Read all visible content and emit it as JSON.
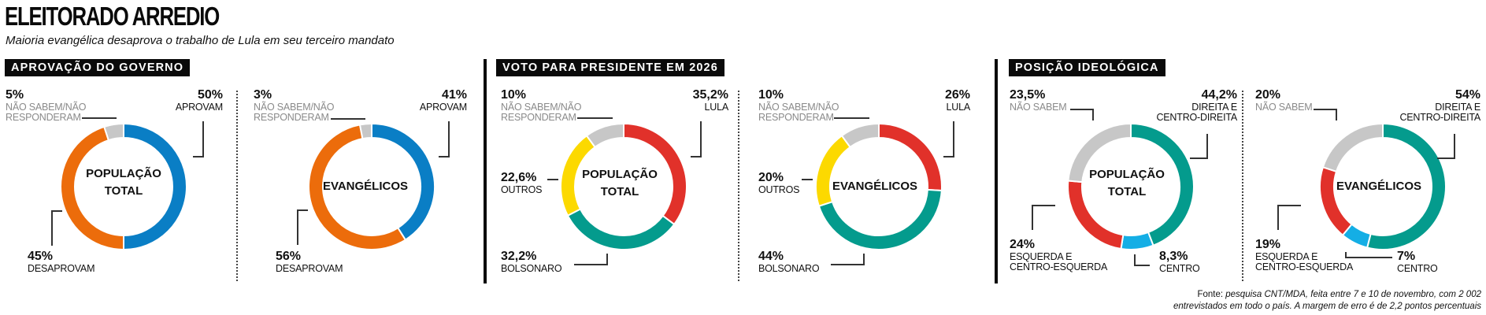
{
  "header": {
    "title": "ELEITORADO ARREDIO",
    "subtitle": "Maioria evangélica desaprova o trabalho de Lula em seu terceiro mandato"
  },
  "sections": [
    {
      "tag": "APROVAÇÃO DO GOVERNO"
    },
    {
      "tag": "VOTO PARA PRESIDENTE EM 2026"
    },
    {
      "tag": "POSIÇÃO IDEOLÓGICA"
    }
  ],
  "colors": {
    "aprovam": "#0a7ec5",
    "desaprovam": "#ec6c0b",
    "nao_sabem": "#c7c7c7",
    "lula": "#e1312a",
    "bolsonaro": "#049b8d",
    "outros": "#fcd900",
    "direita": "#049b8d",
    "centro": "#14aee5",
    "esquerda": "#e1312a"
  },
  "chart_data": [
    {
      "type": "pie",
      "section": "APROVAÇÃO DO GOVERNO",
      "center_label": [
        "POPULAÇÃO",
        "TOTAL"
      ],
      "slices": [
        {
          "key": "aprovam",
          "label": "APROVAM",
          "value": 50,
          "display": "50%"
        },
        {
          "key": "desaprovam",
          "label": "DESAPROVAM",
          "value": 45,
          "display": "45%"
        },
        {
          "key": "nao_sabem",
          "label": "NÃO SABEM/NÃO RESPONDERAM",
          "label_lines": [
            "NÃO SABEM/NÃO",
            "RESPONDERAM"
          ],
          "value": 5,
          "display": "5%"
        }
      ]
    },
    {
      "type": "pie",
      "section": "APROVAÇÃO DO GOVERNO",
      "center_label": [
        "EVANGÉLICOS"
      ],
      "slices": [
        {
          "key": "aprovam",
          "label": "APROVAM",
          "value": 41,
          "display": "41%"
        },
        {
          "key": "desaprovam",
          "label": "DESAPROVAM",
          "value": 56,
          "display": "56%"
        },
        {
          "key": "nao_sabem",
          "label": "NÃO SABEM/NÃO RESPONDERAM",
          "label_lines": [
            "NÃO SABEM/NÃO",
            "RESPONDERAM"
          ],
          "value": 3,
          "display": "3%"
        }
      ]
    },
    {
      "type": "pie",
      "section": "VOTO PARA PRESIDENTE EM 2026",
      "center_label": [
        "POPULAÇÃO",
        "TOTAL"
      ],
      "slices": [
        {
          "key": "lula",
          "label": "LULA",
          "value": 35.2,
          "display": "35,2%"
        },
        {
          "key": "bolsonaro",
          "label": "BOLSONARO",
          "value": 32.2,
          "display": "32,2%"
        },
        {
          "key": "outros",
          "label": "OUTROS",
          "value": 22.6,
          "display": "22,6%"
        },
        {
          "key": "nao_sabem",
          "label": "NÃO SABEM/NÃO RESPONDERAM",
          "label_lines": [
            "NÃO SABEM/NÃO",
            "RESPONDERAM"
          ],
          "value": 10,
          "display": "10%"
        }
      ]
    },
    {
      "type": "pie",
      "section": "VOTO PARA PRESIDENTE EM 2026",
      "center_label": [
        "EVANGÉLICOS"
      ],
      "slices": [
        {
          "key": "lula",
          "label": "LULA",
          "value": 26,
          "display": "26%"
        },
        {
          "key": "bolsonaro",
          "label": "BOLSONARO",
          "value": 44,
          "display": "44%"
        },
        {
          "key": "outros",
          "label": "OUTROS",
          "value": 20,
          "display": "20%"
        },
        {
          "key": "nao_sabem",
          "label": "NÃO SABEM/NÃO RESPONDERAM",
          "label_lines": [
            "NÃO SABEM/NÃO",
            "RESPONDERAM"
          ],
          "value": 10,
          "display": "10%"
        }
      ]
    },
    {
      "type": "pie",
      "section": "POSIÇÃO IDEOLÓGICA",
      "center_label": [
        "POPULAÇÃO",
        "TOTAL"
      ],
      "slices": [
        {
          "key": "direita",
          "label": "DIREITA E CENTRO-DIREITA",
          "label_lines": [
            "DIREITA E",
            "CENTRO-DIREITA"
          ],
          "value": 44.2,
          "display": "44,2%"
        },
        {
          "key": "centro",
          "label": "CENTRO",
          "value": 8.3,
          "display": "8,3%"
        },
        {
          "key": "esquerda",
          "label": "ESQUERDA E CENTRO-ESQUERDA",
          "label_lines": [
            "ESQUERDA E",
            "CENTRO-ESQUERDA"
          ],
          "value": 24,
          "display": "24%"
        },
        {
          "key": "nao_sabem",
          "label": "NÃO SABEM",
          "value": 23.5,
          "display": "23,5%"
        }
      ]
    },
    {
      "type": "pie",
      "section": "POSIÇÃO IDEOLÓGICA",
      "center_label": [
        "EVANGÉLICOS"
      ],
      "slices": [
        {
          "key": "direita",
          "label": "DIREITA E CENTRO-DIREITA",
          "label_lines": [
            "DIREITA E",
            "CENTRO-DIREITA"
          ],
          "value": 54,
          "display": "54%"
        },
        {
          "key": "centro",
          "label": "CENTRO",
          "value": 7,
          "display": "7%"
        },
        {
          "key": "esquerda",
          "label": "ESQUERDA E CENTRO-ESQUERDA",
          "label_lines": [
            "ESQUERDA E",
            "CENTRO-ESQUERDA"
          ],
          "value": 19,
          "display": "19%"
        },
        {
          "key": "nao_sabem",
          "label": "NÃO SABEM",
          "value": 20,
          "display": "20%"
        }
      ]
    }
  ],
  "footer": {
    "source_prefix": "Fonte: ",
    "source_line1": "pesquisa CNT/MDA, feita entre 7 e 10 de novembro, com 2 002",
    "source_line2": "entrevistados em todo o país. A margem de erro é de 2,2 pontos percentuais"
  }
}
